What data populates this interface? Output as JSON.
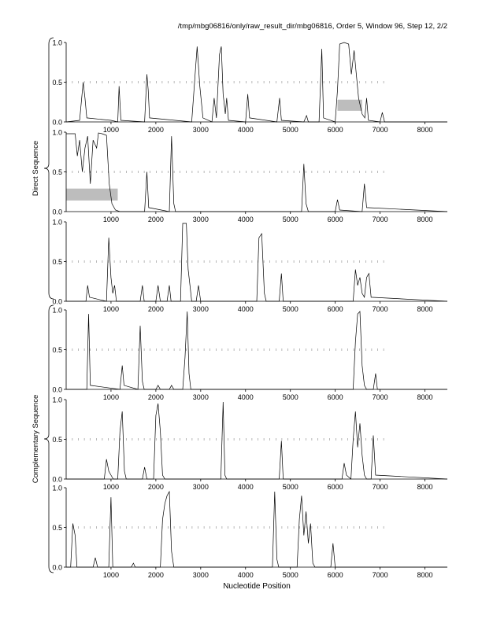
{
  "header": "/tmp/mbg06816/only/raw_result_dir/mbg06816, Order 5, Window 96, Step 12, 2/2",
  "xlabel": "Nucleotide Position",
  "group_labels": [
    "Direct Sequence",
    "Complementary Sequence"
  ],
  "chart_data": {
    "type": "line",
    "xlim": [
      0,
      8500
    ],
    "ylim": [
      0,
      1
    ],
    "x_ticks": [
      1000,
      2000,
      3000,
      4000,
      5000,
      6000,
      7000,
      8000
    ],
    "y_ticks": [
      "0.0",
      "0.5",
      "1.0"
    ],
    "panels": [
      {
        "group": "Direct Sequence",
        "series": [
          [
            0,
            0
          ],
          [
            300,
            0.02
          ],
          [
            380,
            0.5
          ],
          [
            420,
            0.3
          ],
          [
            460,
            0.05
          ],
          [
            1000,
            0.02
          ],
          [
            1150,
            0.0
          ],
          [
            1180,
            0.45
          ],
          [
            1220,
            0.02
          ],
          [
            1750,
            0.0
          ],
          [
            1800,
            0.6
          ],
          [
            1830,
            0.4
          ],
          [
            1860,
            0.05
          ],
          [
            2800,
            0.0
          ],
          [
            2920,
            0.95
          ],
          [
            2980,
            0.45
          ],
          [
            3050,
            0.05
          ],
          [
            3250,
            0.0
          ],
          [
            3300,
            0.3
          ],
          [
            3350,
            0.05
          ],
          [
            3420,
            0.85
          ],
          [
            3460,
            0.95
          ],
          [
            3500,
            0.35
          ],
          [
            3550,
            0.1
          ],
          [
            3580,
            0.3
          ],
          [
            3620,
            0.02
          ],
          [
            4000,
            0.0
          ],
          [
            4050,
            0.35
          ],
          [
            4090,
            0.05
          ],
          [
            4700,
            0.0
          ],
          [
            4760,
            0.3
          ],
          [
            4800,
            0.02
          ],
          [
            5300,
            0.0
          ],
          [
            5360,
            0.08
          ],
          [
            5400,
            0.0
          ],
          [
            5640,
            0.0
          ],
          [
            5700,
            0.92
          ],
          [
            5740,
            0.05
          ],
          [
            6000,
            0.0
          ],
          [
            6050,
            0.4
          ],
          [
            6100,
            0.98
          ],
          [
            6200,
            1.0
          ],
          [
            6300,
            0.98
          ],
          [
            6360,
            0.6
          ],
          [
            6420,
            0.9
          ],
          [
            6470,
            0.6
          ],
          [
            6520,
            0.3
          ],
          [
            6600,
            0.1
          ],
          [
            6660,
            0.05
          ],
          [
            6700,
            0.3
          ],
          [
            6740,
            0.02
          ],
          [
            7000,
            0.0
          ],
          [
            7050,
            0.12
          ],
          [
            7100,
            0.0
          ],
          [
            8500,
            0.0
          ]
        ],
        "highlight": [
          6050,
          6600,
          0.14,
          0.28
        ]
      },
      {
        "group": "Direct Sequence",
        "series": [
          [
            0,
            0.98
          ],
          [
            200,
            0.98
          ],
          [
            250,
            0.7
          ],
          [
            300,
            0.9
          ],
          [
            360,
            0.5
          ],
          [
            420,
            0.8
          ],
          [
            480,
            0.95
          ],
          [
            540,
            0.35
          ],
          [
            600,
            0.9
          ],
          [
            680,
            0.8
          ],
          [
            720,
            0.99
          ],
          [
            800,
            0.98
          ],
          [
            900,
            0.96
          ],
          [
            960,
            0.35
          ],
          [
            1020,
            0.1
          ],
          [
            1100,
            0.02
          ],
          [
            1200,
            0.0
          ],
          [
            1750,
            0.0
          ],
          [
            1800,
            0.5
          ],
          [
            1840,
            0.05
          ],
          [
            2300,
            0.0
          ],
          [
            2350,
            0.95
          ],
          [
            2400,
            0.1
          ],
          [
            2440,
            0.0
          ],
          [
            5250,
            0.0
          ],
          [
            5300,
            0.6
          ],
          [
            5350,
            0.1
          ],
          [
            5400,
            0.0
          ],
          [
            6000,
            0.0
          ],
          [
            6050,
            0.15
          ],
          [
            6100,
            0.02
          ],
          [
            6600,
            0.0
          ],
          [
            6650,
            0.35
          ],
          [
            6700,
            0.05
          ],
          [
            8500,
            0.0
          ]
        ],
        "highlight": [
          0,
          1150,
          0.14,
          0.29
        ]
      },
      {
        "group": "Direct Sequence",
        "series": [
          [
            0,
            0
          ],
          [
            440,
            0.0
          ],
          [
            480,
            0.2
          ],
          [
            520,
            0.05
          ],
          [
            900,
            0.0
          ],
          [
            950,
            0.8
          ],
          [
            1000,
            0.3
          ],
          [
            1040,
            0.1
          ],
          [
            1080,
            0.2
          ],
          [
            1120,
            0.0
          ],
          [
            1650,
            0.0
          ],
          [
            1700,
            0.2
          ],
          [
            1740,
            0.0
          ],
          [
            2000,
            0.0
          ],
          [
            2050,
            0.2
          ],
          [
            2100,
            0.0
          ],
          [
            2250,
            0.0
          ],
          [
            2300,
            0.2
          ],
          [
            2340,
            0.0
          ],
          [
            2550,
            0.0
          ],
          [
            2600,
            0.98
          ],
          [
            2680,
            0.98
          ],
          [
            2720,
            0.4
          ],
          [
            2760,
            0.2
          ],
          [
            2800,
            0.0
          ],
          [
            2900,
            0.0
          ],
          [
            2950,
            0.2
          ],
          [
            3000,
            0.0
          ],
          [
            4250,
            0.0
          ],
          [
            4300,
            0.8
          ],
          [
            4360,
            0.85
          ],
          [
            4420,
            0.1
          ],
          [
            4460,
            0.0
          ],
          [
            4750,
            0.0
          ],
          [
            4800,
            0.35
          ],
          [
            4840,
            0.0
          ],
          [
            6400,
            0.0
          ],
          [
            6450,
            0.4
          ],
          [
            6500,
            0.2
          ],
          [
            6550,
            0.3
          ],
          [
            6600,
            0.1
          ],
          [
            6650,
            0.05
          ],
          [
            6700,
            0.3
          ],
          [
            6750,
            0.35
          ],
          [
            6800,
            0.05
          ],
          [
            8500,
            0.0
          ]
        ]
      },
      {
        "group": "Complementary Sequence",
        "series": [
          [
            0,
            0
          ],
          [
            460,
            0.0
          ],
          [
            500,
            0.95
          ],
          [
            540,
            0.05
          ],
          [
            1200,
            0.0
          ],
          [
            1250,
            0.3
          ],
          [
            1290,
            0.05
          ],
          [
            1600,
            0.0
          ],
          [
            1650,
            0.8
          ],
          [
            1700,
            0.1
          ],
          [
            1740,
            0.0
          ],
          [
            2000,
            0.0
          ],
          [
            2050,
            0.05
          ],
          [
            2100,
            0.0
          ],
          [
            2300,
            0.0
          ],
          [
            2350,
            0.05
          ],
          [
            2400,
            0.0
          ],
          [
            2600,
            0.0
          ],
          [
            2650,
            0.4
          ],
          [
            2700,
            0.98
          ],
          [
            2740,
            0.2
          ],
          [
            2780,
            0.0
          ],
          [
            6400,
            0.0
          ],
          [
            6450,
            0.6
          ],
          [
            6500,
            0.95
          ],
          [
            6550,
            0.98
          ],
          [
            6600,
            0.3
          ],
          [
            6650,
            0.05
          ],
          [
            6700,
            0.0
          ],
          [
            6850,
            0.0
          ],
          [
            6900,
            0.2
          ],
          [
            6940,
            0.0
          ],
          [
            8500,
            0.0
          ]
        ]
      },
      {
        "group": "Complementary Sequence",
        "series": [
          [
            0,
            0
          ],
          [
            850,
            0.0
          ],
          [
            900,
            0.25
          ],
          [
            950,
            0.1
          ],
          [
            1000,
            0.05
          ],
          [
            1050,
            0.0
          ],
          [
            1150,
            0.0
          ],
          [
            1200,
            0.6
          ],
          [
            1250,
            0.85
          ],
          [
            1300,
            0.1
          ],
          [
            1340,
            0.0
          ],
          [
            1700,
            0.0
          ],
          [
            1750,
            0.15
          ],
          [
            1800,
            0.0
          ],
          [
            1950,
            0.0
          ],
          [
            2000,
            0.8
          ],
          [
            2050,
            0.95
          ],
          [
            2100,
            0.6
          ],
          [
            2150,
            0.05
          ],
          [
            2200,
            0.0
          ],
          [
            3450,
            0.0
          ],
          [
            3500,
            0.97
          ],
          [
            3540,
            0.05
          ],
          [
            3580,
            0.0
          ],
          [
            4750,
            0.0
          ],
          [
            4800,
            0.48
          ],
          [
            4840,
            0.0
          ],
          [
            6150,
            0.0
          ],
          [
            6200,
            0.2
          ],
          [
            6250,
            0.05
          ],
          [
            6350,
            0.0
          ],
          [
            6400,
            0.5
          ],
          [
            6450,
            0.85
          ],
          [
            6500,
            0.4
          ],
          [
            6550,
            0.7
          ],
          [
            6600,
            0.3
          ],
          [
            6650,
            0.05
          ],
          [
            6700,
            0.0
          ],
          [
            6800,
            0.0
          ],
          [
            6850,
            0.55
          ],
          [
            6900,
            0.05
          ],
          [
            8500,
            0.0
          ]
        ]
      },
      {
        "group": "Complementary Sequence",
        "series": [
          [
            0,
            0
          ],
          [
            100,
            0.0
          ],
          [
            150,
            0.55
          ],
          [
            200,
            0.4
          ],
          [
            240,
            0.0
          ],
          [
            600,
            0.0
          ],
          [
            650,
            0.12
          ],
          [
            700,
            0.0
          ],
          [
            950,
            0.0
          ],
          [
            1000,
            0.88
          ],
          [
            1040,
            0.0
          ],
          [
            1450,
            0.0
          ],
          [
            1500,
            0.05
          ],
          [
            1540,
            0.0
          ],
          [
            2100,
            0.0
          ],
          [
            2150,
            0.6
          ],
          [
            2200,
            0.8
          ],
          [
            2250,
            0.9
          ],
          [
            2300,
            0.95
          ],
          [
            2350,
            0.2
          ],
          [
            2400,
            0.0
          ],
          [
            4600,
            0.0
          ],
          [
            4650,
            0.95
          ],
          [
            4700,
            0.1
          ],
          [
            4740,
            0.0
          ],
          [
            5150,
            0.0
          ],
          [
            5200,
            0.6
          ],
          [
            5250,
            0.9
          ],
          [
            5300,
            0.4
          ],
          [
            5350,
            0.7
          ],
          [
            5400,
            0.3
          ],
          [
            5450,
            0.55
          ],
          [
            5500,
            0.05
          ],
          [
            5550,
            0.0
          ],
          [
            5900,
            0.0
          ],
          [
            5950,
            0.3
          ],
          [
            6000,
            0.0
          ],
          [
            8500,
            0.0
          ]
        ]
      }
    ]
  }
}
